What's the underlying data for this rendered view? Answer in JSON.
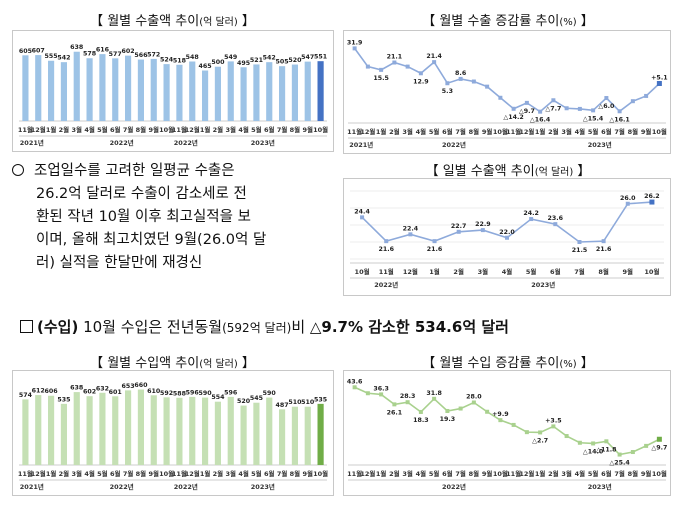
{
  "panels": {
    "export_amount": {
      "title": "【 월별 수출액 추이",
      "title_small": "(억 달러)",
      "title_end": " 】"
    },
    "export_growth": {
      "title": "【 월별 수출 증감률 추이",
      "title_small": "(%)",
      "title_end": " 】"
    },
    "export_daily": {
      "title": "【 일별 수출액 추이",
      "title_small": "(억 달러)",
      "title_end": " 】"
    },
    "import_amount": {
      "title": "【 월별 수입액 추이",
      "title_small": "(억 달러)",
      "title_end": " 】"
    },
    "import_growth": {
      "title": "【 월별 수입 증감률 추이",
      "title_small": "(%)",
      "title_end": " 】"
    }
  },
  "bullet": {
    "lines": [
      "조업일수를 고려한 일평균 수출은",
      "26.2억 달러로 수출이 감소세로 전",
      "환된 작년 10월 이후 최고실적을 보",
      "이며, 올해 최고치였던 9월(26.0억 달",
      "러) 실적을 한달만에 재경신"
    ]
  },
  "import_section": {
    "label": "(수입)",
    "text": " 10월 수입은 전년동월",
    "small": "(592억 달러)",
    "text2": "비 ",
    "highlight": "△9.7% 감소한 534.6억 달러"
  },
  "colors": {
    "export_bar": "#9dc3e6",
    "export_bar_last": "#4472c4",
    "export_line": "#8eaadb",
    "export_point": "#4472c4",
    "import_bar": "#c5e0b4",
    "import_bar_last": "#70ad47",
    "import_line": "#a9d18e",
    "import_point": "#70ad47"
  },
  "chart_data": [
    {
      "id": "export_amount",
      "type": "bar",
      "categories": [
        "11월",
        "12월",
        "1월",
        "2월",
        "3월",
        "4월",
        "5월",
        "6월",
        "7월",
        "8월",
        "9월",
        "10월",
        "11월",
        "12월",
        "1월",
        "2월",
        "3월",
        "4월",
        "5월",
        "6월",
        "7월",
        "8월",
        "9월",
        "10월"
      ],
      "year_labels": [
        {
          "label": "2021년",
          "start": 0,
          "end": 1
        },
        {
          "label": "2022년",
          "start": 2,
          "end": 13
        },
        {
          "label": "2022년",
          "start": 12,
          "end": 13
        },
        {
          "label": "2023년",
          "start": 14,
          "end": 23
        }
      ],
      "values": [
        605,
        607,
        555,
        542,
        638,
        578,
        616,
        577,
        602,
        566,
        572,
        524,
        518,
        548,
        465,
        500,
        549,
        495,
        521,
        542,
        505,
        520,
        547,
        551
      ],
      "ylim": [
        0,
        700
      ]
    },
    {
      "id": "export_growth",
      "type": "line",
      "categories": [
        "11월",
        "12월",
        "1월",
        "2월",
        "3월",
        "4월",
        "5월",
        "6월",
        "7월",
        "8월",
        "9월",
        "10월",
        "11월",
        "12월",
        "1월",
        "2월",
        "3월",
        "4월",
        "5월",
        "6월",
        "7월",
        "8월",
        "9월",
        "10월"
      ],
      "year_labels": [
        {
          "label": "2021년",
          "start": 0,
          "end": 1
        },
        {
          "label": "2022년",
          "start": 2,
          "end": 13
        },
        {
          "label": "2023년",
          "start": 14,
          "end": 23
        }
      ],
      "values": [
        31.9,
        18.0,
        15.5,
        21.1,
        18.0,
        12.9,
        21.4,
        5.3,
        8.6,
        6.6,
        2.7,
        -5.8,
        -14.2,
        -9.7,
        -16.4,
        -7.7,
        -13.8,
        -14.3,
        -15.4,
        -6.0,
        -16.1,
        -8.4,
        -4.4,
        5.1
      ],
      "labels": [
        "31.9",
        "",
        "15.5",
        "21.1",
        "",
        "12.9",
        "21.4",
        "5.3",
        "8.6",
        "",
        "",
        "",
        "△14.2",
        "△9.7",
        "△16.4",
        "△7.7",
        "",
        "",
        "△15.4",
        "△6.0",
        "△16.1",
        "",
        "",
        "+5.1"
      ],
      "ylim": [
        -22,
        36
      ]
    },
    {
      "id": "export_daily",
      "type": "line",
      "categories": [
        "10월",
        "11월",
        "12월",
        "1월",
        "2월",
        "3월",
        "4월",
        "5월",
        "6월",
        "7월",
        "8월",
        "9월",
        "10월"
      ],
      "year_labels": [
        {
          "label": "2022년",
          "start": 0,
          "end": 2
        },
        {
          "label": "2023년",
          "start": 3,
          "end": 12
        }
      ],
      "values": [
        24.4,
        21.6,
        22.4,
        21.6,
        22.7,
        22.9,
        22.0,
        24.2,
        23.6,
        21.5,
        21.6,
        26.0,
        26.2
      ],
      "labels": [
        "24.4",
        "21.6",
        "22.4",
        "21.6",
        "22.7",
        "22.9",
        "22.0",
        "24.2",
        "23.6",
        "21.5",
        "21.6",
        "26.0",
        "26.2"
      ],
      "ylim": [
        19.5,
        27.5
      ]
    },
    {
      "id": "import_amount",
      "type": "bar",
      "categories": [
        "11월",
        "12월",
        "1월",
        "2월",
        "3월",
        "4월",
        "5월",
        "6월",
        "7월",
        "8월",
        "9월",
        "10월",
        "11월",
        "12월",
        "1월",
        "2월",
        "3월",
        "4월",
        "5월",
        "6월",
        "7월",
        "8월",
        "9월",
        "10월"
      ],
      "year_labels": [
        {
          "label": "2021년",
          "start": 0,
          "end": 1
        },
        {
          "label": "2022년",
          "start": 2,
          "end": 13
        },
        {
          "label": "2022년",
          "start": 12,
          "end": 13
        },
        {
          "label": "2023년",
          "start": 14,
          "end": 23
        }
      ],
      "values": [
        574,
        612,
        606,
        535,
        638,
        602,
        632,
        601,
        653,
        660,
        610,
        592,
        588,
        596,
        590,
        554,
        596,
        520,
        545,
        590,
        487,
        510,
        510,
        535
      ],
      "ylim": [
        0,
        700
      ]
    },
    {
      "id": "import_growth",
      "type": "line",
      "categories": [
        "11월",
        "12월",
        "1월",
        "2월",
        "3월",
        "4월",
        "5월",
        "6월",
        "7월",
        "8월",
        "9월",
        "10월",
        "11월",
        "12월",
        "1월",
        "2월",
        "3월",
        "4월",
        "5월",
        "6월",
        "7월",
        "8월",
        "9월",
        "10월"
      ],
      "year_labels": [
        {
          "label": "2022년",
          "start": 2,
          "end": 13
        },
        {
          "label": "2023년",
          "start": 14,
          "end": 23
        }
      ],
      "values": [
        43.6,
        37.5,
        36.3,
        26.1,
        28.3,
        18.3,
        31.8,
        19.3,
        21.8,
        28.0,
        18.5,
        9.9,
        5.0,
        -2.4,
        -2.7,
        3.5,
        -6.4,
        -13.3,
        -14.0,
        -11.8,
        -25.4,
        -22.8,
        -16.5,
        -9.7
      ],
      "labels": [
        "43.6",
        "",
        "36.3",
        "26.1",
        "28.3",
        "18.3",
        "31.8",
        "19.3",
        "",
        "28.0",
        "",
        "+9.9",
        "",
        "",
        "△2.7",
        "+3.5",
        "",
        "",
        "△14.0",
        "△11.8",
        "△25.4",
        "",
        "",
        "△9.7"
      ],
      "ylim": [
        -32,
        48
      ]
    }
  ]
}
